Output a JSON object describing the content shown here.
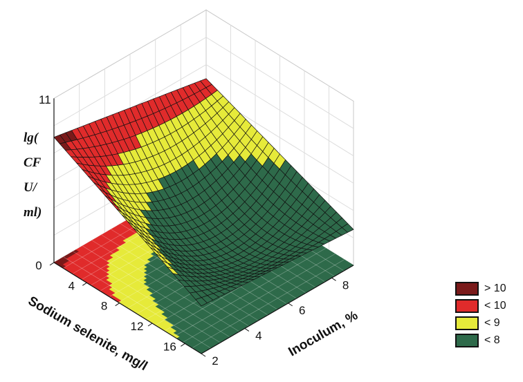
{
  "chart_data": {
    "type": "surface",
    "title": "",
    "xlabel": "Sodium selenite, mg/l",
    "ylabel": "Inoculum, %",
    "zlabel": [
      "lg(",
      "CF",
      "U/",
      "ml)"
    ],
    "x_ticks": [
      "0",
      "4",
      "8",
      "12",
      "16"
    ],
    "y_ticks": [
      "2",
      "4",
      "6",
      "8"
    ],
    "z_ticks": [
      "11"
    ],
    "xlim": [
      0,
      18
    ],
    "ylim": [
      2,
      9
    ],
    "zlim": [
      6,
      11
    ],
    "grid": true,
    "legend_position": "bottom-right",
    "legend": [
      {
        "label": "> 10",
        "color": "#7a1a1a"
      },
      {
        "label": "< 10",
        "color": "#e02b2b"
      },
      {
        "label": "< 9",
        "color": "#e6ea3a"
      },
      {
        "label": "< 8",
        "color": "#2e6a4a"
      }
    ],
    "surface_points": [
      {
        "x": 0,
        "y": 2,
        "z": 10.2
      },
      {
        "x": 18,
        "y": 2,
        "z": 7.6
      },
      {
        "x": 0,
        "y": 9,
        "z": 9.2
      },
      {
        "x": 18,
        "y": 9,
        "z": 7.2
      },
      {
        "x": 10,
        "y": 6,
        "z": 6.9
      }
    ]
  }
}
